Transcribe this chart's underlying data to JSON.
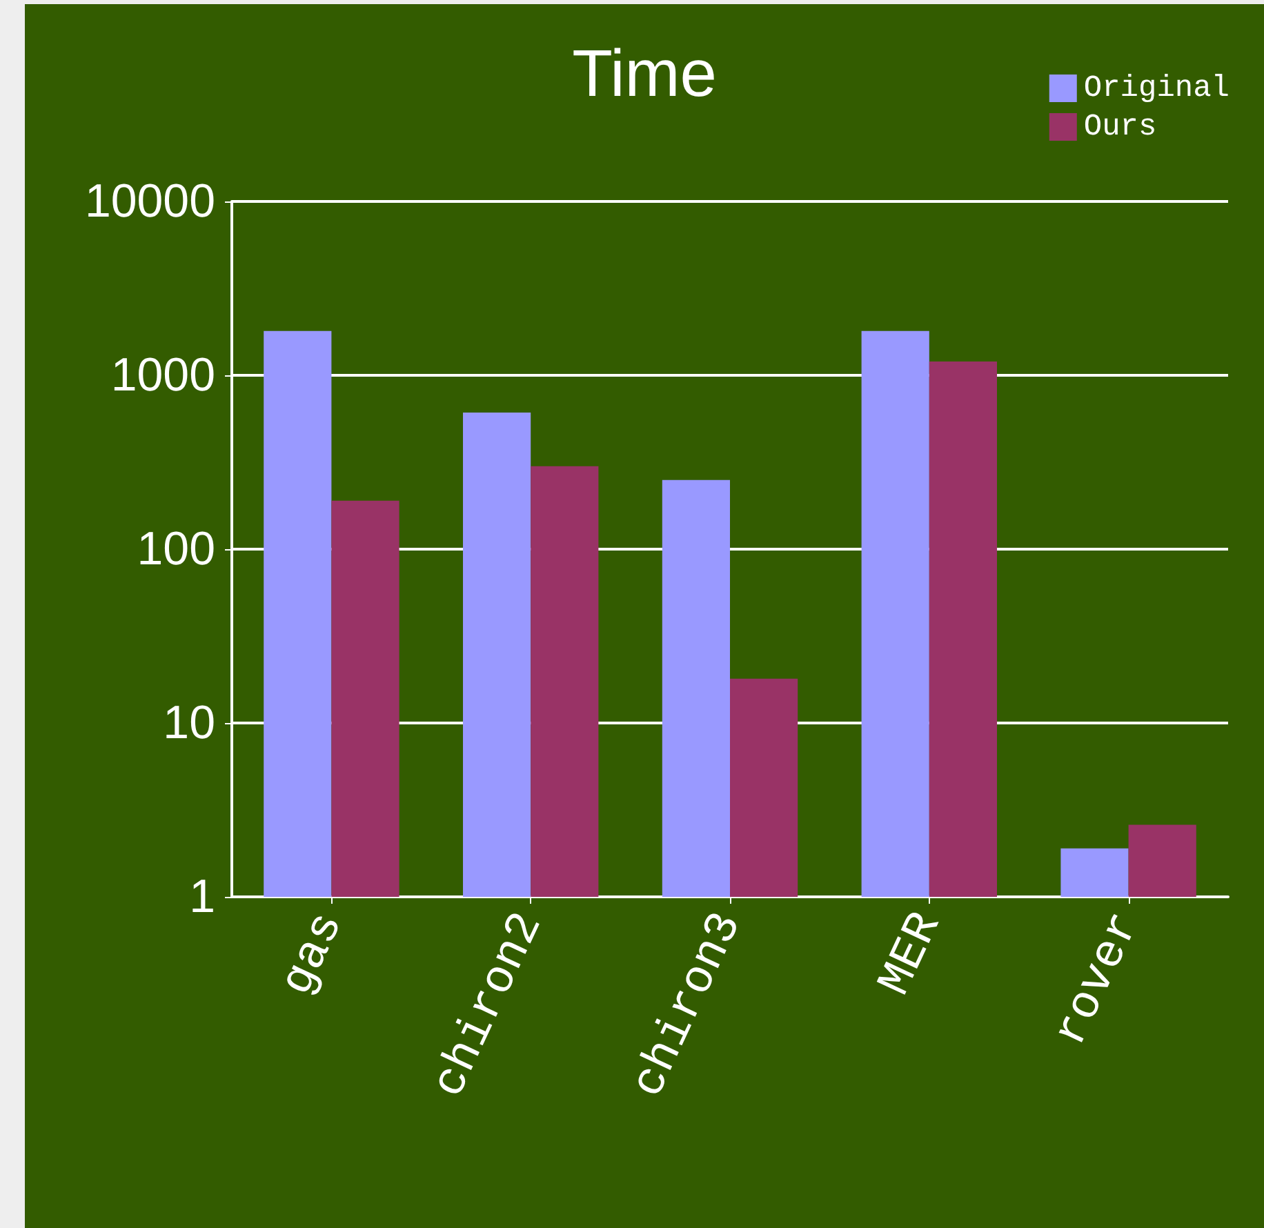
{
  "chart_data": {
    "type": "bar",
    "title": "Time",
    "categories": [
      "gas",
      "chiron2",
      "chiron3",
      "MER",
      "rover"
    ],
    "series": [
      {
        "name": "Original",
        "color": "#9999ff",
        "values": [
          1800,
          610,
          250,
          1800,
          1.9
        ]
      },
      {
        "name": "Ours",
        "color": "#993366",
        "values": [
          190,
          300,
          18,
          1200,
          2.6
        ]
      }
    ],
    "log": true,
    "ylim": [
      1,
      10000
    ],
    "yticks": [
      1,
      10,
      100,
      1000,
      10000
    ],
    "grid": "y",
    "legend": "top right"
  }
}
